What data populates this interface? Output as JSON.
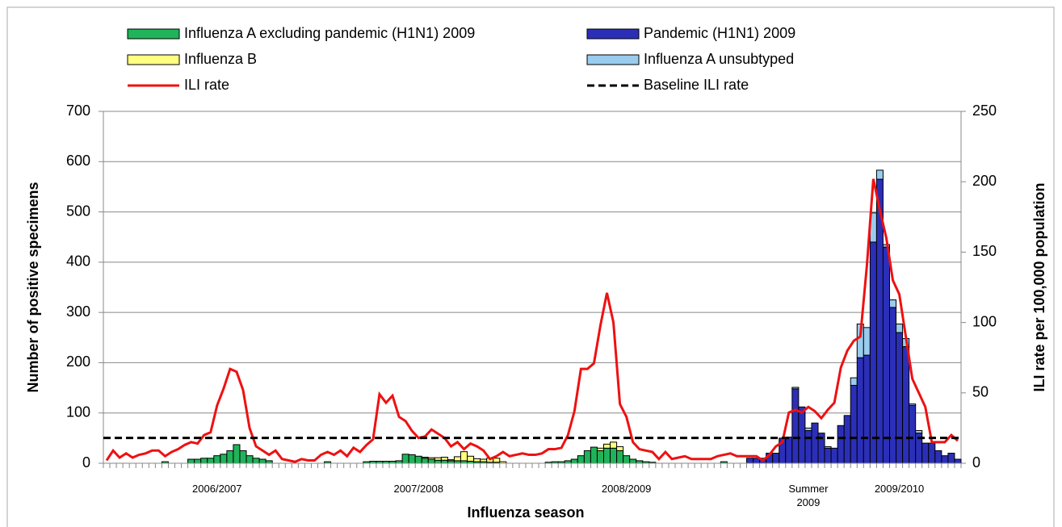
{
  "chart_data": {
    "type": "bar",
    "stacked": true,
    "x_label": "Influenza season",
    "y_label": "Number of positive specimens",
    "y2_label": "ILI rate per 100,000 population",
    "ylim": [
      0,
      700
    ],
    "yticks": [
      0,
      100,
      200,
      300,
      400,
      500,
      600,
      700
    ],
    "y2lim": [
      0,
      250
    ],
    "y2ticks": [
      0,
      50,
      100,
      150,
      200,
      250
    ],
    "grid": true,
    "categories": [
      null,
      null,
      null,
      null,
      null,
      null,
      null,
      null,
      null,
      null,
      null,
      null,
      null,
      null,
      null,
      null,
      null,
      "2006/2007",
      null,
      null,
      null,
      null,
      null,
      null,
      null,
      null,
      null,
      null,
      null,
      null,
      null,
      null,
      null,
      null,
      null,
      null,
      null,
      null,
      null,
      null,
      null,
      null,
      null,
      null,
      null,
      null,
      null,
      null,
      "2007/2008",
      null,
      null,
      null,
      null,
      null,
      null,
      null,
      null,
      null,
      null,
      null,
      null,
      null,
      null,
      null,
      null,
      null,
      null,
      null,
      null,
      null,
      null,
      null,
      null,
      null,
      null,
      null,
      null,
      null,
      null,
      null,
      "2008/2009",
      null,
      null,
      null,
      null,
      null,
      null,
      null,
      null,
      null,
      null,
      null,
      null,
      null,
      null,
      null,
      null,
      null,
      null,
      null,
      null,
      null,
      null,
      null,
      null,
      null,
      null,
      null,
      "Summer 2009",
      null,
      null,
      null,
      null,
      null,
      null,
      null,
      null,
      null,
      null,
      null,
      null,
      null,
      "2009/2010",
      null,
      null,
      null,
      null,
      null,
      null,
      null,
      null,
      null
    ],
    "series": [
      {
        "name": "Influenza A excluding pandemic (H1N1) 2009",
        "color": "#1fb45a",
        "values": [
          0,
          0,
          0,
          0,
          0,
          0,
          0,
          0,
          0,
          3,
          0,
          0,
          0,
          8,
          8,
          10,
          10,
          15,
          18,
          25,
          37,
          25,
          15,
          10,
          8,
          5,
          0,
          0,
          0,
          0,
          0,
          0,
          0,
          0,
          3,
          0,
          0,
          0,
          0,
          0,
          3,
          4,
          4,
          4,
          4,
          5,
          18,
          17,
          14,
          10,
          8,
          6,
          6,
          5,
          5,
          5,
          4,
          3,
          3,
          2,
          2,
          0,
          0,
          0,
          0,
          0,
          0,
          0,
          2,
          3,
          3,
          5,
          8,
          15,
          25,
          32,
          25,
          30,
          30,
          25,
          15,
          8,
          5,
          3,
          2,
          0,
          0,
          0,
          0,
          0,
          0,
          0,
          0,
          0,
          0,
          3,
          0,
          0,
          0,
          0,
          0,
          0,
          0,
          0,
          0,
          0,
          0,
          0,
          0,
          0,
          0,
          0,
          0,
          0,
          0,
          0,
          0,
          0,
          0,
          0,
          0,
          0,
          0,
          0,
          0,
          0,
          0,
          0,
          0,
          0,
          0,
          0
        ]
      },
      {
        "name": "Pandemic (H1N1) 2009",
        "color": "#2b2fb8",
        "values": [
          0,
          0,
          0,
          0,
          0,
          0,
          0,
          0,
          0,
          0,
          0,
          0,
          0,
          0,
          0,
          0,
          0,
          0,
          0,
          0,
          0,
          0,
          0,
          0,
          0,
          0,
          0,
          0,
          0,
          0,
          0,
          0,
          0,
          0,
          0,
          0,
          0,
          0,
          0,
          0,
          0,
          0,
          0,
          0,
          0,
          0,
          0,
          0,
          0,
          0,
          0,
          0,
          0,
          0,
          0,
          0,
          0,
          0,
          0,
          0,
          0,
          0,
          0,
          0,
          0,
          0,
          0,
          0,
          0,
          0,
          0,
          0,
          0,
          0,
          0,
          0,
          0,
          0,
          0,
          0,
          0,
          0,
          0,
          0,
          0,
          0,
          0,
          0,
          0,
          0,
          0,
          0,
          0,
          0,
          0,
          0,
          0,
          0,
          0,
          10,
          10,
          10,
          20,
          20,
          50,
          52,
          148,
          112,
          65,
          80,
          60,
          30,
          30,
          75,
          95,
          155,
          210,
          215,
          440,
          565,
          430,
          310,
          260,
          232,
          115,
          60,
          40,
          40,
          25,
          15,
          20,
          8
        ]
      },
      {
        "name": "Influenza B",
        "color": "#ffff80",
        "values": [
          0,
          0,
          0,
          0,
          0,
          0,
          0,
          0,
          0,
          0,
          0,
          0,
          0,
          0,
          0,
          0,
          0,
          0,
          0,
          0,
          0,
          0,
          0,
          0,
          0,
          0,
          0,
          0,
          0,
          0,
          0,
          0,
          0,
          0,
          0,
          0,
          0,
          0,
          0,
          0,
          0,
          0,
          0,
          0,
          0,
          0,
          0,
          0,
          0,
          2,
          3,
          5,
          6,
          2,
          8,
          18,
          10,
          6,
          5,
          8,
          8,
          3,
          0,
          0,
          0,
          0,
          0,
          0,
          0,
          0,
          0,
          0,
          0,
          0,
          0,
          0,
          5,
          8,
          12,
          8,
          0,
          0,
          0,
          0,
          0,
          0,
          0,
          0,
          0,
          0,
          0,
          0,
          0,
          0,
          0,
          0,
          0,
          0,
          0,
          0,
          0,
          0,
          0,
          0,
          0,
          0,
          0,
          0,
          0,
          0,
          0,
          0,
          0,
          0,
          0,
          0,
          0,
          0,
          0,
          0,
          0,
          0,
          0,
          0,
          0,
          0,
          0,
          0,
          0,
          0,
          0,
          0
        ]
      },
      {
        "name": "Influenza A unsubtyped",
        "color": "#99ccee",
        "values": [
          0,
          0,
          0,
          0,
          0,
          0,
          0,
          0,
          0,
          0,
          0,
          0,
          0,
          0,
          0,
          0,
          0,
          0,
          0,
          0,
          0,
          0,
          0,
          0,
          0,
          0,
          0,
          0,
          0,
          0,
          0,
          0,
          0,
          0,
          0,
          0,
          0,
          0,
          0,
          0,
          0,
          0,
          0,
          0,
          0,
          0,
          0,
          0,
          0,
          0,
          0,
          0,
          0,
          0,
          0,
          0,
          0,
          0,
          0,
          0,
          0,
          0,
          0,
          0,
          0,
          0,
          0,
          0,
          0,
          0,
          0,
          0,
          0,
          0,
          0,
          0,
          0,
          0,
          0,
          0,
          0,
          0,
          0,
          0,
          0,
          0,
          0,
          0,
          0,
          0,
          0,
          0,
          0,
          0,
          0,
          0,
          0,
          0,
          0,
          0,
          0,
          0,
          0,
          0,
          0,
          0,
          3,
          0,
          5,
          0,
          0,
          3,
          0,
          0,
          0,
          15,
          67,
          55,
          58,
          18,
          5,
          15,
          17,
          16,
          3,
          5,
          0,
          0,
          0,
          0,
          0,
          0
        ]
      }
    ],
    "lines": [
      {
        "name": "ILI rate",
        "color": "#ee1111",
        "axis": "y2",
        "values": [
          2,
          9,
          4,
          7,
          4,
          6,
          7,
          9,
          9,
          5,
          8,
          10,
          13,
          15,
          14,
          20,
          22,
          41,
          53,
          67,
          65,
          52,
          25,
          12,
          9,
          6,
          9,
          3,
          2,
          1,
          3,
          2,
          2,
          6,
          8,
          6,
          9,
          5,
          11,
          8,
          13,
          17,
          49,
          43,
          48,
          33,
          30,
          23,
          18,
          19,
          24,
          21,
          18,
          12,
          15,
          10,
          14,
          12,
          9,
          3,
          5,
          8,
          5,
          6,
          7,
          6,
          6,
          7,
          10,
          10,
          11,
          20,
          37,
          67,
          67,
          71,
          98,
          121,
          100,
          42,
          33,
          15,
          10,
          9,
          8,
          3,
          8,
          3,
          4,
          5,
          3,
          3,
          3,
          3,
          5,
          6,
          7,
          5,
          5,
          5,
          5,
          2,
          6,
          12,
          15,
          36,
          38,
          36,
          40,
          37,
          32,
          38,
          43,
          68,
          80,
          87,
          90,
          140,
          202,
          180,
          160,
          130,
          120,
          90,
          60,
          50,
          40,
          15,
          15,
          15,
          20,
          16
        ]
      },
      {
        "name": "Baseline ILI rate",
        "color": "#000000",
        "axis": "y2",
        "dashed": true,
        "value": 18
      }
    ]
  }
}
